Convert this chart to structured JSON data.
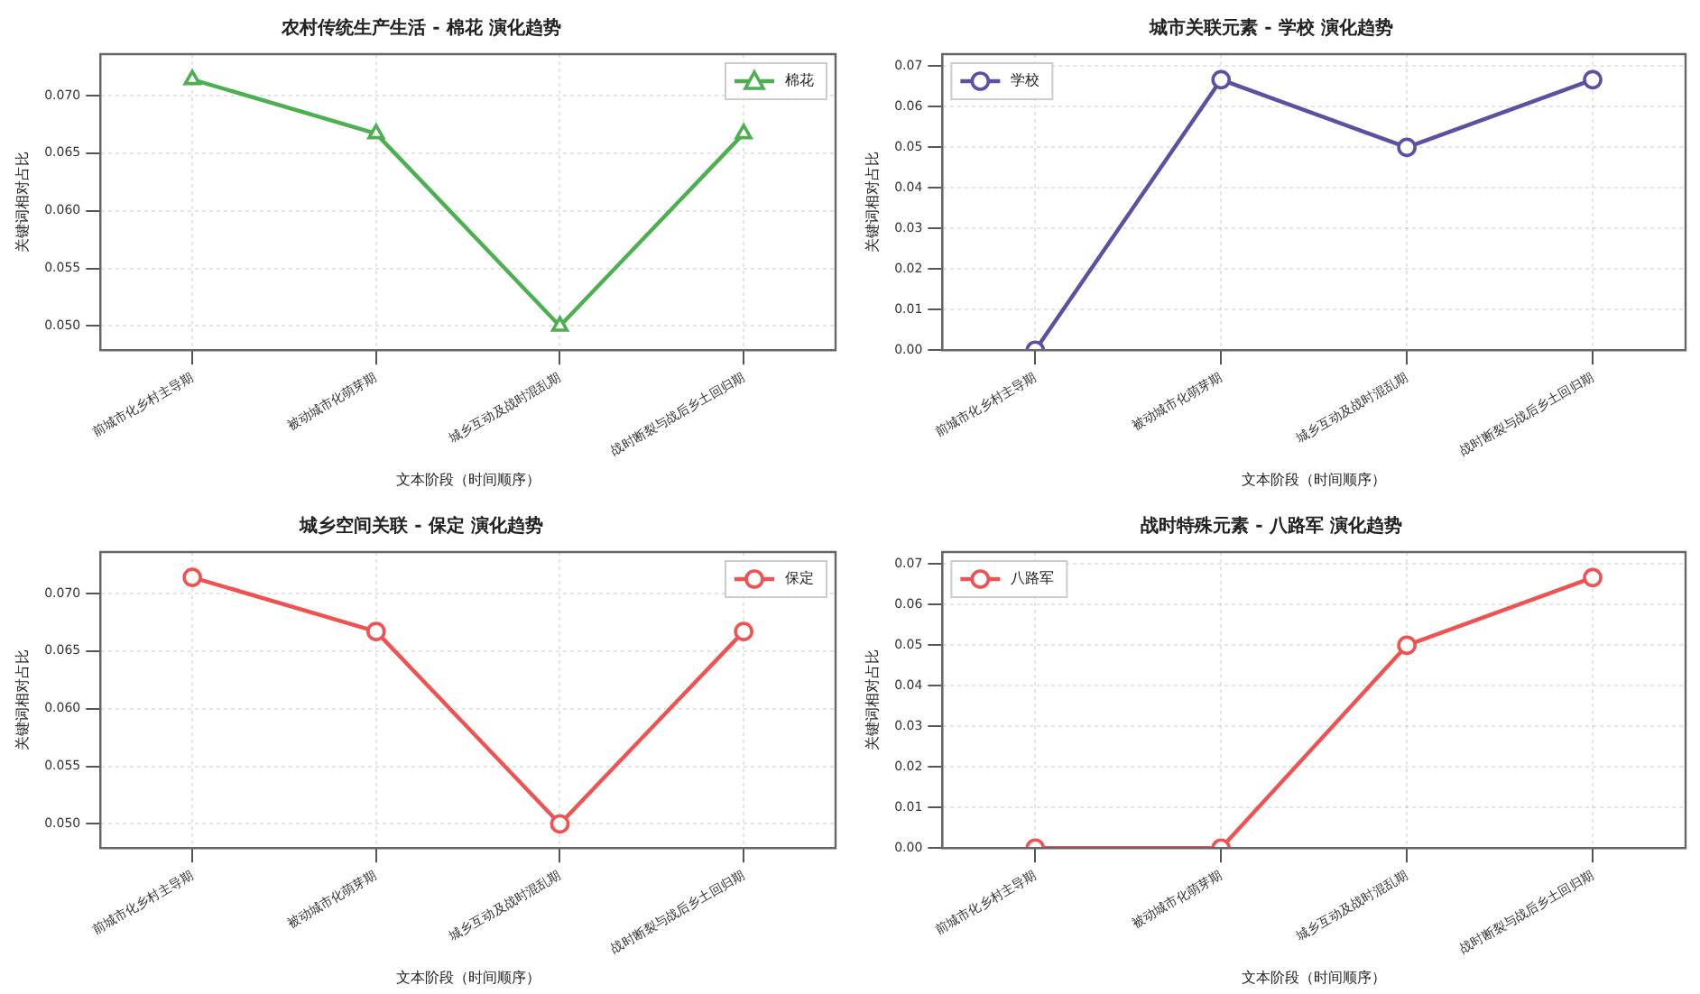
{
  "chart_data": [
    {
      "type": "line",
      "title": "农村传统生产生活 - 棉花 演化趋势",
      "xlabel": "文本阶段（时间顺序）",
      "ylabel": "关键词相对占比",
      "categories": [
        "前城市化乡村主导期",
        "被动城市化萌芽期",
        "城乡互动及战时混乱期",
        "战时断裂与战后乡土回归期"
      ],
      "series": [
        {
          "name": "棉花",
          "color": "#4caf50",
          "values": [
            0.0714,
            0.0667,
            0.05,
            0.0667
          ]
        }
      ],
      "ylim": [
        0.0479,
        0.0736
      ],
      "yticks": [
        {
          "value": 0.05,
          "label": "0.050"
        },
        {
          "value": 0.055,
          "label": "0.055"
        },
        {
          "value": 0.06,
          "label": "0.060"
        },
        {
          "value": 0.065,
          "label": "0.065"
        },
        {
          "value": 0.07,
          "label": "0.070"
        }
      ],
      "grid": true,
      "legend": "top right",
      "marker": "triangle",
      "line_style": "solid"
    },
    {
      "type": "line",
      "title": "城市关联元素 - 学校 演化趋势",
      "xlabel": "文本阶段（时间顺序）",
      "ylabel": "关键词相对占比",
      "categories": [
        "前城市化乡村主导期",
        "被动城市化萌芽期",
        "城乡互动及战时混乱期",
        "战时断裂与战后乡土回归期"
      ],
      "series": [
        {
          "name": "学校",
          "color": "#5e4fa2",
          "values": [
            0,
            0.0667,
            0.05,
            0.0667
          ]
        }
      ],
      "ylim": [
        0,
        0.073
      ],
      "yticks": [
        {
          "value": 0,
          "label": "0.00"
        },
        {
          "value": 0.01,
          "label": "0.01"
        },
        {
          "value": 0.02,
          "label": "0.02"
        },
        {
          "value": 0.03,
          "label": "0.03"
        },
        {
          "value": 0.04,
          "label": "0.04"
        },
        {
          "value": 0.05,
          "label": "0.05"
        },
        {
          "value": 0.06,
          "label": "0.06"
        },
        {
          "value": 0.07,
          "label": "0.07"
        }
      ],
      "grid": true,
      "legend": "top left",
      "marker": "circle",
      "line_style": "solid"
    },
    {
      "type": "line",
      "title": "城乡空间关联 - 保定 演化趋势",
      "xlabel": "文本阶段（时间顺序）",
      "ylabel": "关键词相对占比",
      "categories": [
        "前城市化乡村主导期",
        "被动城市化萌芽期",
        "城乡互动及战时混乱期",
        "战时断裂与战后乡土回归期"
      ],
      "series": [
        {
          "name": "保定",
          "color": "#f05252",
          "values": [
            0.0714,
            0.0667,
            0.05,
            0.0667
          ]
        }
      ],
      "ylim": [
        0.0479,
        0.0736
      ],
      "yticks": [
        {
          "value": 0.05,
          "label": "0.050"
        },
        {
          "value": 0.055,
          "label": "0.055"
        },
        {
          "value": 0.06,
          "label": "0.060"
        },
        {
          "value": 0.065,
          "label": "0.065"
        },
        {
          "value": 0.07,
          "label": "0.070"
        }
      ],
      "grid": true,
      "legend": "top right",
      "marker": "circle",
      "line_style": "solid"
    },
    {
      "type": "line",
      "title": "战时特殊元素 - 八路军 演化趋势",
      "xlabel": "文本阶段（时间顺序）",
      "ylabel": "关键词相对占比",
      "categories": [
        "前城市化乡村主导期",
        "被动城市化萌芽期",
        "城乡互动及战时混乱期",
        "战时断裂与战后乡土回归期"
      ],
      "series": [
        {
          "name": "八路军",
          "color": "#f05252",
          "values": [
            0,
            0,
            0.05,
            0.0667
          ]
        }
      ],
      "ylim": [
        0,
        0.073
      ],
      "yticks": [
        {
          "value": 0,
          "label": "0.00"
        },
        {
          "value": 0.01,
          "label": "0.01"
        },
        {
          "value": 0.02,
          "label": "0.02"
        },
        {
          "value": 0.03,
          "label": "0.03"
        },
        {
          "value": 0.04,
          "label": "0.04"
        },
        {
          "value": 0.05,
          "label": "0.05"
        },
        {
          "value": 0.06,
          "label": "0.06"
        },
        {
          "value": 0.07,
          "label": "0.07"
        }
      ],
      "grid": true,
      "legend": "top left",
      "marker": "circle",
      "line_style": "solid"
    }
  ]
}
